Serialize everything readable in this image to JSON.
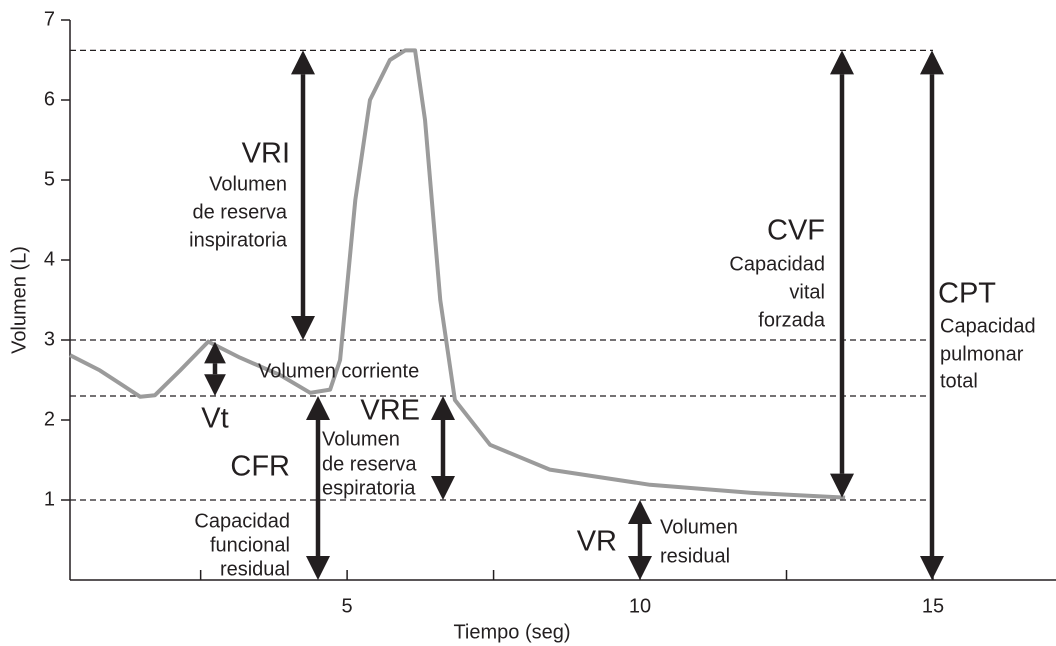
{
  "chart_data": {
    "type": "line",
    "x_label": "Tiempo (seg)",
    "y_label": "Volumen (L)",
    "xlim": [
      0.27,
      17.1
    ],
    "ylim": [
      0,
      7
    ],
    "xticks": [
      5,
      10,
      15
    ],
    "minor_xticks": [
      2.5,
      7.5,
      12.5
    ],
    "yticks": [
      1,
      2,
      3,
      4,
      5,
      6,
      7
    ],
    "reference_lines": [
      6.62,
      3,
      2.3,
      1
    ],
    "series": [
      {
        "color": "#9b9b9b",
        "x": [
          0.27,
          0.78,
          1.47,
          1.72,
          2.15,
          2.63,
          3.17,
          3.86,
          4.37,
          4.71,
          4.88,
          5.14,
          5.39,
          5.73,
          5.99,
          6.16,
          6.33,
          6.59,
          6.84,
          7.44,
          8.46,
          10.17,
          11.88,
          13.5
        ],
        "values": [
          2.81,
          2.62,
          2.29,
          2.31,
          2.62,
          2.98,
          2.78,
          2.56,
          2.34,
          2.38,
          2.75,
          4.75,
          6.0,
          6.5,
          6.62,
          6.62,
          5.75,
          3.5,
          2.25,
          1.69,
          1.38,
          1.19,
          1.09,
          1.03
        ]
      }
    ],
    "annotations": [
      {
        "abbr": "VRI",
        "lines": [
          "Volumen",
          "de reserva",
          "inspiratoria"
        ],
        "range": [
          6.62,
          3
        ]
      },
      {
        "abbr": "Vt",
        "lines": [
          "Volumen corriente"
        ],
        "range": [
          2.98,
          2.3
        ]
      },
      {
        "abbr": "VRE",
        "lines": [
          "Volumen",
          "de reserva",
          "espiratoria"
        ],
        "range": [
          2.3,
          1
        ]
      },
      {
        "abbr": "CFR",
        "lines": [
          "Capacidad",
          "funcional",
          "residual"
        ],
        "range": [
          2.3,
          0
        ]
      },
      {
        "abbr": "VR",
        "lines": [
          "Volumen",
          "residual"
        ],
        "range": [
          1,
          0
        ]
      },
      {
        "abbr": "CVF",
        "lines": [
          "Capacidad",
          "vital",
          "forzada"
        ],
        "range": [
          6.62,
          1.03
        ]
      },
      {
        "abbr": "CPT",
        "lines": [
          "Capacidad",
          "pulmonar",
          "total"
        ],
        "range": [
          6.62,
          0
        ]
      }
    ]
  }
}
